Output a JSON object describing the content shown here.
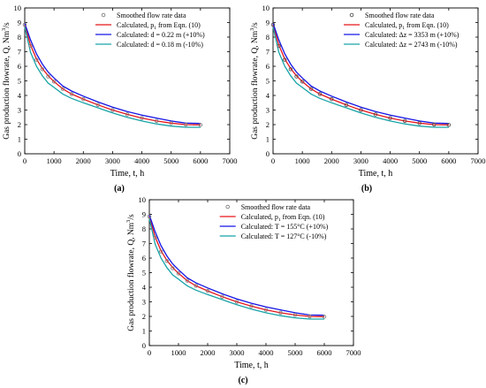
{
  "chart_data": [
    {
      "type": "line",
      "panel_label": "(a)",
      "xlabel": "Time, t, h",
      "ylabel": "Gas production flowrate, Q, Nm",
      "ylabel_sup": "3",
      "ylabel_tail": "/s",
      "xlim": [
        0,
        7000
      ],
      "ylim": [
        0,
        10
      ],
      "xticks": [
        "0",
        "1000",
        "2000",
        "3000",
        "4000",
        "5000",
        "6000",
        "7000"
      ],
      "yticks": [
        "0",
        "1",
        "2",
        "3",
        "4",
        "5",
        "6",
        "7",
        "8",
        "9",
        "10"
      ],
      "grid": false,
      "legend_position": "top-right",
      "series": [
        {
          "name": "Smoothed flow rate data",
          "style": "markers",
          "color": "#7f7f7f",
          "x": [
            0,
            200,
            400,
            600,
            800,
            1000,
            1300,
            1600,
            2000,
            2500,
            3000,
            3500,
            4000,
            4500,
            5000,
            5500,
            6000
          ],
          "y": [
            8.85,
            7.4,
            6.45,
            5.8,
            5.3,
            4.95,
            4.45,
            4.1,
            3.75,
            3.35,
            3.0,
            2.7,
            2.45,
            2.25,
            2.1,
            2.0,
            1.98
          ]
        },
        {
          "name": "Calculated, p",
          "sub": "1",
          "name_tail": " from Eqn. (10)",
          "style": "line",
          "color": "#e8161b",
          "x": [
            0,
            200,
            400,
            600,
            800,
            1000,
            1300,
            1600,
            2000,
            2500,
            3000,
            3500,
            4000,
            4500,
            5000,
            5500,
            6000
          ],
          "y": [
            8.85,
            7.45,
            6.5,
            5.85,
            5.35,
            4.95,
            4.45,
            4.1,
            3.75,
            3.35,
            3.0,
            2.7,
            2.45,
            2.25,
            2.1,
            2.0,
            1.98
          ]
        },
        {
          "name": "Calculated:  d = 0.22 m (+10%)",
          "style": "line",
          "color": "#1414e6",
          "x": [
            0,
            200,
            400,
            600,
            800,
            1000,
            1300,
            1600,
            2000,
            2500,
            3000,
            3500,
            4000,
            4500,
            5000,
            5500,
            6000
          ],
          "y": [
            8.95,
            7.8,
            6.85,
            6.15,
            5.6,
            5.2,
            4.65,
            4.3,
            3.95,
            3.55,
            3.2,
            2.9,
            2.65,
            2.45,
            2.25,
            2.1,
            2.08
          ]
        },
        {
          "name": "Calculated:  d = 0.18 m (-10%)",
          "style": "line",
          "color": "#17a3a8",
          "x": [
            0,
            200,
            400,
            600,
            800,
            1000,
            1300,
            1600,
            2000,
            2500,
            3000,
            3500,
            4000,
            4500,
            5000,
            5500,
            6000
          ],
          "y": [
            8.7,
            6.95,
            6.0,
            5.35,
            4.85,
            4.55,
            4.1,
            3.8,
            3.5,
            3.15,
            2.8,
            2.5,
            2.25,
            2.05,
            1.9,
            1.82,
            1.82
          ]
        }
      ]
    },
    {
      "type": "line",
      "panel_label": "(b)",
      "xlabel": "Time, t, h",
      "ylabel": "Gas production flowrate, Q, Nm",
      "ylabel_sup": "3",
      "ylabel_tail": "/s",
      "xlim": [
        0,
        7000
      ],
      "ylim": [
        0,
        10
      ],
      "xticks": [
        "0",
        "1000",
        "2000",
        "3000",
        "4000",
        "5000",
        "6000",
        "7000"
      ],
      "yticks": [
        "0",
        "1",
        "2",
        "3",
        "4",
        "5",
        "6",
        "7",
        "8",
        "9",
        "10"
      ],
      "grid": false,
      "legend_position": "top-right",
      "series": [
        {
          "name": "Smoothed flow rate data",
          "style": "markers",
          "color": "#555555",
          "x": [
            0,
            200,
            400,
            600,
            800,
            1000,
            1300,
            1600,
            2000,
            2500,
            3000,
            3500,
            4000,
            4500,
            5000,
            5500,
            6000
          ],
          "y": [
            8.85,
            7.4,
            6.45,
            5.8,
            5.3,
            4.95,
            4.45,
            4.1,
            3.75,
            3.35,
            3.0,
            2.7,
            2.45,
            2.25,
            2.1,
            2.0,
            1.98
          ]
        },
        {
          "name": "Calculated, p",
          "sub": "1",
          "name_tail": " from Eqn. (10)",
          "style": "line",
          "color": "#e8161b",
          "x": [
            0,
            200,
            400,
            600,
            800,
            1000,
            1300,
            1600,
            2000,
            2500,
            3000,
            3500,
            4000,
            4500,
            5000,
            5500,
            6000
          ],
          "y": [
            8.85,
            7.45,
            6.5,
            5.85,
            5.35,
            4.95,
            4.45,
            4.1,
            3.75,
            3.35,
            3.0,
            2.7,
            2.45,
            2.25,
            2.1,
            2.0,
            1.98
          ]
        },
        {
          "name": "Calculated:   Δz = 3353 m (+10%)",
          "style": "line",
          "color": "#1414e6",
          "x": [
            0,
            200,
            400,
            600,
            800,
            1000,
            1300,
            1600,
            2000,
            2500,
            3000,
            3500,
            4000,
            4500,
            5000,
            5500,
            6000
          ],
          "y": [
            8.95,
            7.8,
            6.85,
            6.15,
            5.6,
            5.2,
            4.65,
            4.3,
            3.95,
            3.55,
            3.2,
            2.9,
            2.65,
            2.45,
            2.25,
            2.1,
            2.08
          ]
        },
        {
          "name": "Calculated:   Δz = 2743 m (-10%)",
          "style": "line",
          "color": "#17a3a8",
          "x": [
            0,
            200,
            400,
            600,
            800,
            1000,
            1300,
            1600,
            2000,
            2500,
            3000,
            3500,
            4000,
            4500,
            5000,
            5500,
            6000
          ],
          "y": [
            8.7,
            6.95,
            6.0,
            5.35,
            4.85,
            4.55,
            4.1,
            3.8,
            3.5,
            3.15,
            2.8,
            2.5,
            2.25,
            2.05,
            1.9,
            1.82,
            1.82
          ]
        }
      ]
    },
    {
      "type": "line",
      "panel_label": "(c)",
      "xlabel": "Time, t, h",
      "ylabel": "Gas production flowrate, Q, Nm",
      "ylabel_sup": "3",
      "ylabel_tail": "/s",
      "xlim": [
        0,
        7000
      ],
      "ylim": [
        0,
        10
      ],
      "xticks": [
        "0",
        "1000",
        "2000",
        "3000",
        "4000",
        "5000",
        "6000",
        "7000"
      ],
      "yticks": [
        "0",
        "1",
        "2",
        "3",
        "4",
        "5",
        "6",
        "7",
        "8",
        "9",
        "10"
      ],
      "grid": false,
      "legend_position": "top-right",
      "series": [
        {
          "name": "Smoothed flow rate data",
          "style": "markers",
          "color": "#7f7f7f",
          "x": [
            0,
            200,
            400,
            600,
            800,
            1000,
            1300,
            1600,
            2000,
            2500,
            3000,
            3500,
            4000,
            4500,
            5000,
            5500,
            6000
          ],
          "y": [
            8.85,
            7.4,
            6.45,
            5.8,
            5.3,
            4.95,
            4.45,
            4.1,
            3.75,
            3.35,
            3.0,
            2.7,
            2.45,
            2.25,
            2.1,
            2.0,
            1.98
          ]
        },
        {
          "name": "Calculated, p",
          "sub": "1",
          "name_tail": " from Eqn. (10)",
          "style": "line",
          "color": "#e8161b",
          "x": [
            0,
            200,
            400,
            600,
            800,
            1000,
            1300,
            1600,
            2000,
            2500,
            3000,
            3500,
            4000,
            4500,
            5000,
            5500,
            6000
          ],
          "y": [
            8.85,
            7.45,
            6.5,
            5.85,
            5.35,
            4.95,
            4.45,
            4.1,
            3.75,
            3.35,
            3.0,
            2.7,
            2.45,
            2.25,
            2.1,
            2.0,
            1.98
          ]
        },
        {
          "name": "Calculated:  T = 155°C (+10%)",
          "style": "line",
          "color": "#1414e6",
          "x": [
            0,
            200,
            400,
            600,
            800,
            1000,
            1300,
            1600,
            2000,
            2500,
            3000,
            3500,
            4000,
            4500,
            5000,
            5500,
            6000
          ],
          "y": [
            8.95,
            7.8,
            6.85,
            6.15,
            5.6,
            5.2,
            4.65,
            4.3,
            3.95,
            3.55,
            3.2,
            2.9,
            2.65,
            2.45,
            2.25,
            2.1,
            2.08
          ]
        },
        {
          "name": "Calculated:  T = 127°C (-10%)",
          "style": "line",
          "color": "#17a3a8",
          "x": [
            0,
            200,
            400,
            600,
            800,
            1000,
            1300,
            1600,
            2000,
            2500,
            3000,
            3500,
            4000,
            4500,
            5000,
            5500,
            6000
          ],
          "y": [
            8.7,
            6.95,
            6.0,
            5.35,
            4.85,
            4.55,
            4.1,
            3.8,
            3.5,
            3.15,
            2.8,
            2.5,
            2.25,
            2.05,
            1.9,
            1.82,
            1.82
          ]
        }
      ]
    }
  ]
}
